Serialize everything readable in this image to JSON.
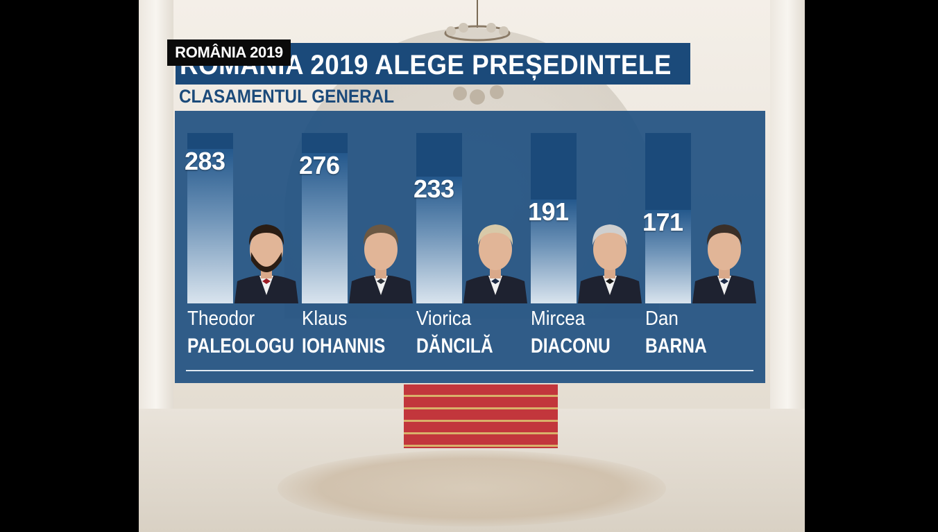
{
  "tag": "ROMÂNIA 2019",
  "title": "ROMÂNIA 2019 ALEGE PREȘEDINTELE",
  "subtitle": "CLASAMENTUL GENERAL",
  "chart_data": {
    "type": "bar",
    "title": "ROMÂNIA 2019 ALEGE PREȘEDINTELE",
    "subtitle": "CLASAMENTUL GENERAL",
    "categories": [
      "Theodor PALEOLOGU",
      "Klaus IOHANNIS",
      "Viorica DĂNCILĂ",
      "Mircea DIACONU",
      "Dan BARNA"
    ],
    "values": [
      283,
      276,
      233,
      191,
      171
    ],
    "ylim": [
      0,
      300
    ],
    "grid": false,
    "legend": "none"
  },
  "candidates": [
    {
      "first": "Theodor",
      "last": "PALEOLOGU",
      "value": "283",
      "tie": "#9b1b24",
      "hair": "#2a1d14",
      "beard": true
    },
    {
      "first": "Klaus",
      "last": "IOHANNIS",
      "value": "276",
      "tie": "#2b2f38",
      "hair": "#6b5843",
      "beard": false
    },
    {
      "first": "Viorica",
      "last": "DĂNCILĂ",
      "value": "233",
      "tie": "#1c2a44",
      "hair": "#d8c9a8",
      "beard": false
    },
    {
      "first": "Mircea",
      "last": "DIACONU",
      "value": "191",
      "tie": "#151515",
      "hair": "#cfcfcf",
      "beard": false
    },
    {
      "first": "Dan",
      "last": "BARNA",
      "value": "171",
      "tie": "#1e2c48",
      "hair": "#3a2f28",
      "beard": false
    }
  ],
  "colors": {
    "panel": "#1c4e80",
    "title_bar": "#1b4a7a",
    "tag_bg": "#0a0a0a",
    "text": "#ffffff"
  }
}
